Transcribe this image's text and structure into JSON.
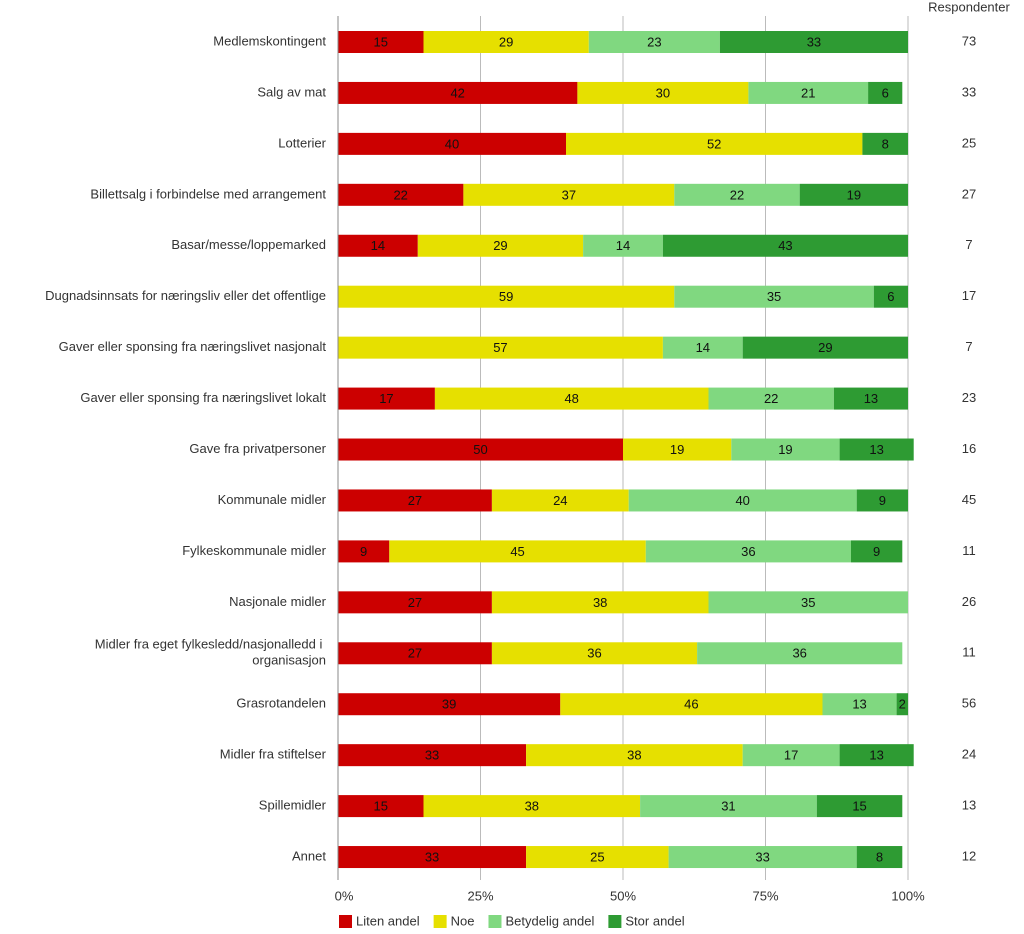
{
  "chart_data": {
    "type": "stacked-bar-horizontal",
    "categories": [
      "Medlemskontingent",
      "Salg av mat",
      "Lotterier",
      "Billettsalg i forbindelse med arrangement",
      "Basar/messe/loppemarked",
      "Dugnadsinnsats for næringsliv eller det offentlige",
      "Gaver eller sponsing fra næringslivet nasjonalt",
      "Gaver eller sponsing fra næringslivet lokalt",
      "Gave fra privatpersoner",
      "Kommunale midler",
      "Fylkeskommunale midler",
      "Nasjonale midler",
      "Midler fra eget fylkesledd/nasjonalledd i organisasjon",
      "Grasrotandelen",
      "Midler fra stiftelser",
      "Spillemidler",
      "Annet"
    ],
    "series": [
      {
        "name": "Liten andel",
        "color": "#cc0000",
        "values": [
          15,
          42,
          40,
          22,
          14,
          null,
          null,
          17,
          50,
          27,
          9,
          27,
          27,
          39,
          33,
          15,
          33
        ]
      },
      {
        "name": "Noe",
        "color": "#e6e000",
        "values": [
          29,
          30,
          52,
          37,
          29,
          59,
          57,
          48,
          19,
          24,
          45,
          38,
          36,
          46,
          38,
          38,
          25
        ]
      },
      {
        "name": "Betydelig andel",
        "color": "#80d880",
        "values": [
          23,
          21,
          null,
          22,
          14,
          35,
          14,
          22,
          19,
          40,
          36,
          35,
          36,
          13,
          17,
          31,
          33
        ]
      },
      {
        "name": "Stor andel",
        "color": "#2e9b33",
        "values": [
          33,
          6,
          8,
          19,
          43,
          6,
          29,
          13,
          13,
          9,
          9,
          null,
          null,
          2,
          13,
          15,
          8
        ]
      }
    ],
    "respondents_label": "Respondenter",
    "respondents": [
      73,
      33,
      25,
      27,
      7,
      17,
      7,
      23,
      16,
      45,
      11,
      26,
      11,
      56,
      24,
      13,
      12
    ],
    "xlim": [
      0,
      100
    ],
    "xticks": [
      {
        "value": 0,
        "label": "0%"
      },
      {
        "value": 25,
        "label": "25%"
      },
      {
        "value": 50,
        "label": "50%"
      },
      {
        "value": 75,
        "label": "75%"
      },
      {
        "value": 100,
        "label": "100%"
      }
    ],
    "grid": true,
    "legend": "bottom"
  }
}
